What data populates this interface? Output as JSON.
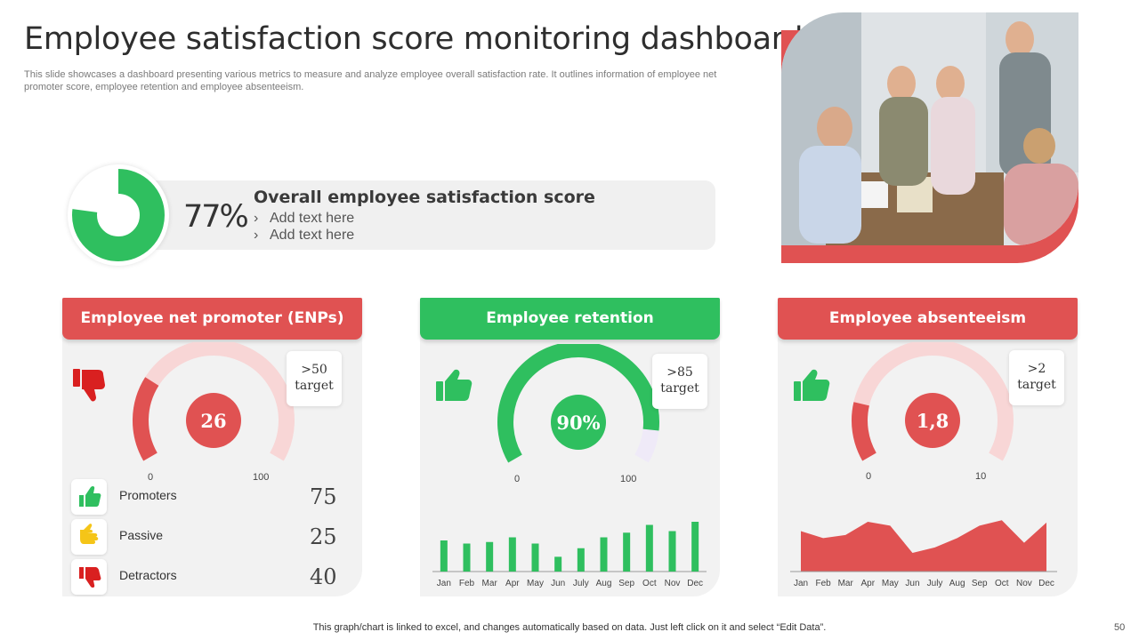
{
  "title": "Employee satisfaction score monitoring dashboard",
  "subtitle": "This slide showcases a dashboard presenting various metrics to measure and analyze employee overall satisfaction rate. It outlines information of employee net promoter score, employee retention and employee absenteeism.",
  "score": {
    "value": 77,
    "display": "77%",
    "title": "Overall employee satisfaction score",
    "items": [
      "Add text here",
      "Add text here"
    ]
  },
  "cards": {
    "enps": {
      "title": "Employee net promoter (ENPs)",
      "value": "26",
      "gauge_fraction": 0.26,
      "target_line1": ">50",
      "target_line2": "target",
      "axis_min": "0",
      "axis_max": "100",
      "legend": [
        {
          "label": "Promoters",
          "value": "75"
        },
        {
          "label": "Passive",
          "value": "25"
        },
        {
          "label": "Detractors",
          "value": "40"
        }
      ]
    },
    "retention": {
      "title": "Employee retention",
      "value": "90%",
      "gauge_fraction": 0.9,
      "target_line1": ">85",
      "target_line2": "target",
      "axis_min": "0",
      "axis_max": "100"
    },
    "absenteeism": {
      "title": "Employee absenteeism",
      "value": "1,8",
      "gauge_fraction": 0.18,
      "target_line1": ">2",
      "target_line2": "target",
      "axis_min": "0",
      "axis_max": "10"
    }
  },
  "chart_data": [
    {
      "type": "bar",
      "title": "Employee retention",
      "categories": [
        "Jan",
        "Feb",
        "Mar",
        "Apr",
        "May",
        "Jun",
        "July",
        "Aug",
        "Sep",
        "Oct",
        "Nov",
        "Dec"
      ],
      "values": [
        40,
        36,
        38,
        44,
        36,
        19,
        30,
        44,
        50,
        60,
        52,
        64
      ],
      "ylim": [
        0,
        80
      ]
    },
    {
      "type": "area",
      "title": "Employee absenteeism",
      "categories": [
        "Jan",
        "Feb",
        "Mar",
        "Apr",
        "May",
        "Jun",
        "July",
        "Aug",
        "Sep",
        "Oct",
        "Nov",
        "Dec"
      ],
      "values": [
        52,
        43,
        47,
        64,
        59,
        24,
        31,
        43,
        59,
        66,
        37,
        63
      ],
      "ylim": [
        0,
        80
      ]
    }
  ],
  "colors": {
    "red": "#e05252",
    "green": "#2fbf5f",
    "light_red": "#f8d6d6",
    "light_purple": "#efeaf8",
    "yellow": "#f5c518"
  },
  "footer": "This graph/chart is linked to excel,  and changes automatically based on data. Just left click on it and select “Edit Data”.",
  "page_number": "50"
}
